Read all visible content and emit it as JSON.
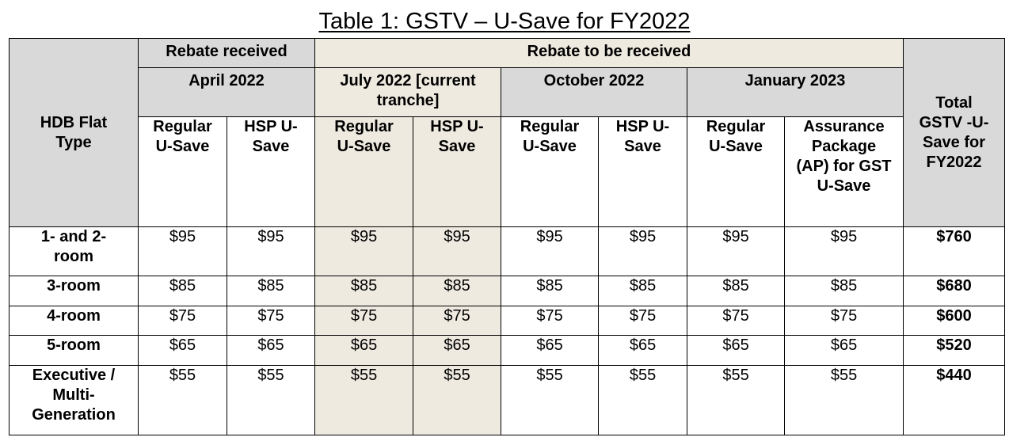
{
  "title": "Table 1: GSTV – U-Save for FY2022",
  "headers": {
    "flat_type": "HDB Flat Type",
    "rebate_received": "Rebate received",
    "rebate_to_be_received": "Rebate to be received",
    "total": "Total GSTV -U-Save for FY2022",
    "periods": {
      "april": "April 2022",
      "july": "July 2022 [current tranche]",
      "october": "October 2022",
      "january": "January 2023"
    },
    "sub": {
      "regular": "Regular U-Save",
      "hsp": "HSP U-Save",
      "ap": "Assurance Package (AP) for GST U-Save"
    }
  },
  "rows": [
    {
      "type": "1- and 2-room",
      "values": [
        "$95",
        "$95",
        "$95",
        "$95",
        "$95",
        "$95",
        "$95",
        "$95"
      ],
      "total": "$760"
    },
    {
      "type": "3-room",
      "values": [
        "$85",
        "$85",
        "$85",
        "$85",
        "$85",
        "$85",
        "$85",
        "$85"
      ],
      "total": "$680"
    },
    {
      "type": "4-room",
      "values": [
        "$75",
        "$75",
        "$75",
        "$75",
        "$75",
        "$75",
        "$75",
        "$75"
      ],
      "total": "$600"
    },
    {
      "type": "5-room",
      "values": [
        "$65",
        "$65",
        "$65",
        "$65",
        "$65",
        "$65",
        "$65",
        "$65"
      ],
      "total": "$520"
    },
    {
      "type": "Executive / Multi-Generation",
      "values": [
        "$55",
        "$55",
        "$55",
        "$55",
        "$55",
        "$55",
        "$55",
        "$55"
      ],
      "total": "$440"
    }
  ],
  "colors": {
    "header_gray": "#d9d9d9",
    "current_tranche_highlight": "#eeeae0"
  }
}
